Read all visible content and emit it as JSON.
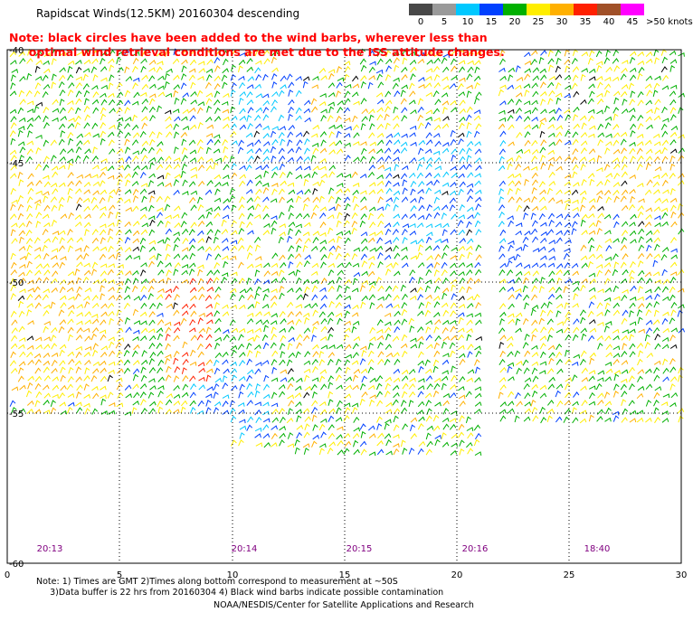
{
  "title": "Rapidscat Winds(12.5KM) 20160304 descending",
  "note_lines": [
    "Note: black circles have been added to the wind barbs, wherever less than",
    "     optimal wind retrieval conditions are met due to the ISS attitude changes."
  ],
  "legend": {
    "labels": [
      "0",
      "5",
      "10",
      "15",
      "20",
      "25",
      "30",
      "35",
      "40",
      "45",
      ">50 knots"
    ],
    "colors": [
      "#484848",
      "#9a9a9a",
      "#00c8ff",
      "#0040ff",
      "#00b000",
      "#ffee00",
      "#ffb000",
      "#ff2000",
      "#a05028",
      "#ff00ff",
      "#7000c0"
    ]
  },
  "axes": {
    "x_ticks": [
      "0",
      "5",
      "10",
      "15",
      "20",
      "25",
      "30"
    ],
    "y_ticks": [
      "-40",
      "-45",
      "-50",
      "-55",
      "-60"
    ]
  },
  "times": [
    "20:13",
    "20:14",
    "20:15",
    "20:16",
    "18:40"
  ],
  "footer": {
    "line1": "Note: 1) Times are GMT 2)Times along bottom correspond to measurement at ~50S",
    "line2": "     3)Data buffer is 22 hrs from 20160304 4) Black wind barbs indicate possible contamination",
    "credit": "NOAA/NESDIS/Center for Satellite Applications and Research"
  }
}
